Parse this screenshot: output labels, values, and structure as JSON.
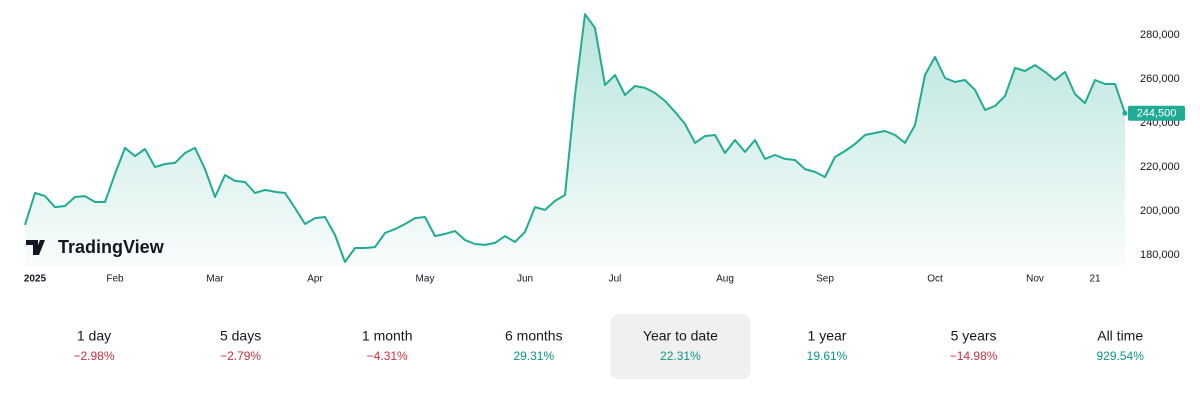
{
  "chart_data": {
    "type": "area",
    "watermark": "TradingView",
    "color": "#22ab94",
    "grid": false,
    "ylim": [
      175000,
      296000
    ],
    "yticks": [
      {
        "value": 180000,
        "label": "180,000"
      },
      {
        "value": 200000,
        "label": "200,000"
      },
      {
        "value": 220000,
        "label": "220,000"
      },
      {
        "value": 240000,
        "label": "240,000"
      },
      {
        "value": 260000,
        "label": "260,000"
      },
      {
        "value": 280000,
        "label": "280,000"
      }
    ],
    "categories": [
      null,
      "2025",
      null,
      null,
      null,
      null,
      null,
      null,
      null,
      "Feb",
      null,
      null,
      null,
      null,
      null,
      null,
      null,
      null,
      null,
      "Mar",
      null,
      null,
      null,
      null,
      null,
      null,
      null,
      null,
      null,
      "Apr",
      null,
      null,
      null,
      null,
      null,
      null,
      null,
      null,
      null,
      null,
      "May",
      null,
      null,
      null,
      null,
      null,
      null,
      null,
      null,
      null,
      "Jun",
      null,
      null,
      null,
      null,
      null,
      null,
      null,
      null,
      "Jul",
      null,
      null,
      null,
      null,
      null,
      null,
      null,
      null,
      null,
      null,
      "Aug",
      null,
      null,
      null,
      null,
      null,
      null,
      null,
      null,
      null,
      "Sep",
      null,
      null,
      null,
      null,
      null,
      null,
      null,
      null,
      null,
      null,
      "Oct",
      null,
      null,
      null,
      null,
      null,
      null,
      null,
      null,
      null,
      "Nov",
      null,
      null,
      null,
      null,
      null,
      "21",
      null,
      null,
      null
    ],
    "values": [
      193700,
      208200,
      206800,
      201800,
      202300,
      206400,
      206800,
      204100,
      204100,
      216900,
      228700,
      225000,
      228200,
      220000,
      221400,
      221900,
      226400,
      228700,
      219100,
      206400,
      216400,
      213700,
      213200,
      208200,
      209600,
      208700,
      208200,
      201400,
      194100,
      196800,
      197300,
      189100,
      176800,
      183200,
      183200,
      183600,
      190000,
      191800,
      194100,
      196800,
      197300,
      188600,
      189600,
      190900,
      186800,
      185000,
      184600,
      185500,
      188600,
      185900,
      190500,
      201800,
      200500,
      204600,
      207300,
      252800,
      289600,
      283300,
      257300,
      261900,
      252800,
      256900,
      256000,
      253700,
      250100,
      245100,
      239600,
      231000,
      234100,
      234600,
      226400,
      232300,
      226900,
      232300,
      223700,
      225500,
      223700,
      223200,
      219100,
      217800,
      215500,
      224600,
      227300,
      230500,
      234600,
      235500,
      236400,
      234600,
      231000,
      239100,
      261900,
      270100,
      260500,
      258700,
      259600,
      255100,
      246000,
      247800,
      252300,
      265100,
      263700,
      266400,
      263300,
      259600,
      263300,
      253200,
      249100,
      259600,
      257800,
      257800,
      244500
    ],
    "value_labels": [
      null,
      null,
      null,
      null,
      null,
      null,
      null,
      null,
      null,
      null,
      null,
      null,
      null,
      null,
      null,
      null,
      null,
      null,
      null,
      null,
      null,
      null,
      null,
      null,
      null,
      null,
      null,
      null,
      null,
      null,
      null,
      null,
      null,
      null,
      null,
      null,
      null,
      null,
      null,
      null,
      null,
      null,
      null,
      null,
      null,
      null,
      null,
      null,
      null,
      null,
      null,
      null,
      null,
      null,
      null,
      null,
      null,
      null,
      null,
      null,
      null,
      null,
      null,
      null,
      null,
      null,
      null,
      null,
      null,
      null,
      null,
      null,
      null,
      null,
      null,
      null,
      null,
      null,
      null,
      null,
      null,
      null,
      null,
      null,
      null,
      null,
      null,
      null,
      null,
      null,
      null,
      null,
      null,
      null,
      null,
      null,
      null,
      null,
      null,
      null,
      null,
      null,
      null,
      null,
      null,
      null,
      null,
      null,
      null,
      null,
      "244,500"
    ]
  },
  "periods": [
    {
      "name": "1 day",
      "change": {
        "value": -2.98,
        "label": "−2.98%"
      }
    },
    {
      "name": "5 days",
      "change": {
        "value": -2.79,
        "label": "−2.79%"
      }
    },
    {
      "name": "1 month",
      "change": {
        "value": -4.31,
        "label": "−4.31%"
      }
    },
    {
      "name": "6 months",
      "change": {
        "value": 29.31,
        "label": "29.31%"
      }
    },
    {
      "name": "Year to date",
      "change": {
        "value": 22.31,
        "label": "22.31%"
      }
    },
    {
      "name": "1 year",
      "change": {
        "value": 19.61,
        "label": "19.61%"
      }
    },
    {
      "name": "5 years",
      "change": {
        "value": -14.98,
        "label": "−14.98%"
      }
    },
    {
      "name": "All time",
      "change": {
        "value": 929.54,
        "label": "929.54%"
      }
    }
  ],
  "selected_period": 4
}
